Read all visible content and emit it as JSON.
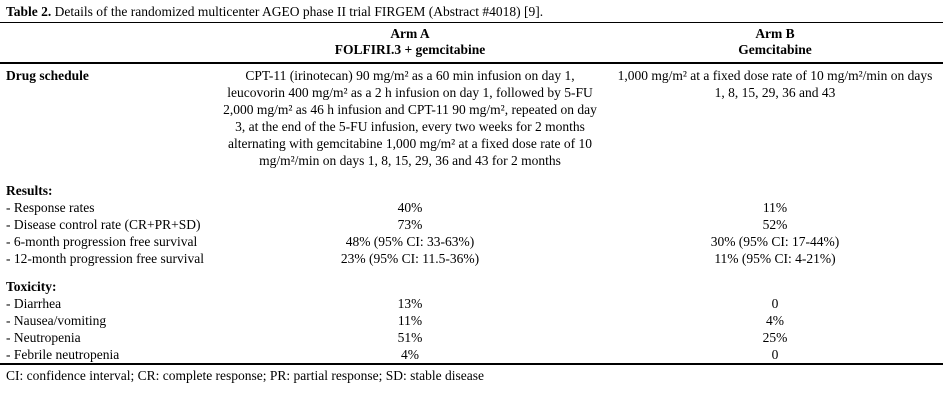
{
  "caption": {
    "label": "Table 2.",
    "text": "Details of the randomized multicenter AGEO phase II trial FIRGEM (Abstract #4018) [9]."
  },
  "columns": {
    "arm_a": {
      "line1": "Arm A",
      "line2": "FOLFIRI.3 + gemcitabine"
    },
    "arm_b": {
      "line1": "Arm B",
      "line2": "Gemcitabine"
    }
  },
  "drug_schedule": {
    "label": "Drug schedule",
    "arm_a": "CPT-11 (irinotecan) 90 mg/m² as a 60 min infusion on day 1, leucovorin 400 mg/m² as a 2 h infusion on day 1, followed by 5-FU 2,000 mg/m² as 46 h infusion and CPT-11 90 mg/m², repeated on day 3, at the end of the 5-FU infusion, every two weeks for 2 months alternating with gemcitabine 1,000 mg/m² at a fixed dose rate of 10 mg/m²/min on days 1, 8, 15, 29, 36 and 43 for 2 months",
    "arm_b": "1,000 mg/m² at a fixed dose rate of 10 mg/m²/min on days 1, 8, 15, 29, 36 and 43"
  },
  "results": {
    "section_label": "Results:",
    "rows": [
      {
        "label": "- Response rates",
        "arm_a": "40%",
        "arm_b": "11%"
      },
      {
        "label": "- Disease control rate (CR+PR+SD)",
        "arm_a": "73%",
        "arm_b": "52%"
      },
      {
        "label": "- 6-month progression free survival",
        "arm_a": "48% (95% CI: 33-63%)",
        "arm_b": "30% (95% CI: 17-44%)"
      },
      {
        "label": "- 12-month progression free survival",
        "arm_a": "23% (95% CI: 11.5-36%)",
        "arm_b": "11% (95% CI: 4-21%)"
      }
    ]
  },
  "toxicity": {
    "section_label": "Toxicity:",
    "rows": [
      {
        "label": "- Diarrhea",
        "arm_a": "13%",
        "arm_b": "0"
      },
      {
        "label": "- Nausea/vomiting",
        "arm_a": "11%",
        "arm_b": "4%"
      },
      {
        "label": "- Neutropenia",
        "arm_a": "51%",
        "arm_b": "25%"
      },
      {
        "label": "- Febrile neutropenia",
        "arm_a": "4%",
        "arm_b": "0"
      }
    ]
  },
  "footnote": "CI: confidence interval; CR: complete response; PR: partial response; SD: stable disease"
}
